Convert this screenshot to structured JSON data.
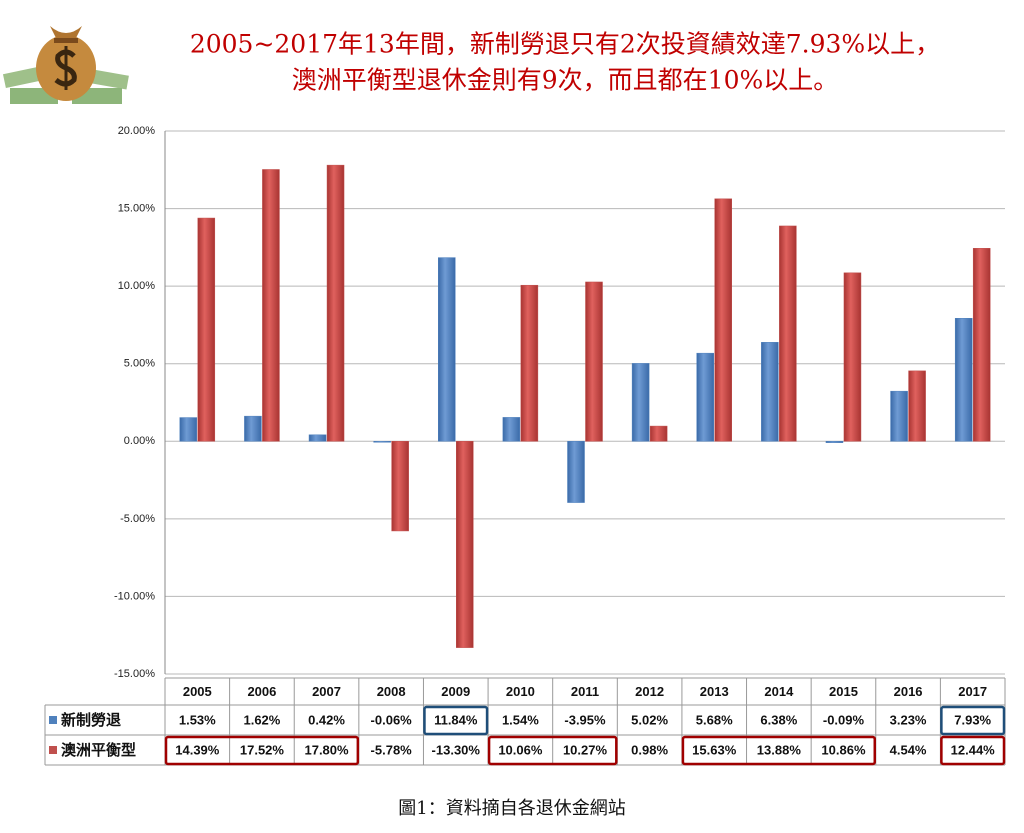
{
  "chart_data": {
    "type": "bar",
    "title": [
      "2005~2017年13年間，新制勞退只有2次投資績效達7.93%以上，",
      "澳洲平衡型退休金則有9次，而且都在10%以上。"
    ],
    "categories": [
      "2005",
      "2006",
      "2007",
      "2008",
      "2009",
      "2010",
      "2011",
      "2012",
      "2013",
      "2014",
      "2015",
      "2016",
      "2017"
    ],
    "series": [
      {
        "name": "新制勞退",
        "color": "#4f81bd",
        "values": [
          1.53,
          1.62,
          0.42,
          -0.06,
          11.84,
          1.54,
          -3.95,
          5.02,
          5.68,
          6.38,
          -0.09,
          3.23,
          7.93
        ],
        "value_labels": [
          "1.53%",
          "1.62%",
          "0.42%",
          "-0.06%",
          "11.84%",
          "1.54%",
          "-3.95%",
          "5.02%",
          "5.68%",
          "6.38%",
          "-0.09%",
          "3.23%",
          "7.93%"
        ]
      },
      {
        "name": "澳洲平衡型",
        "color": "#c0504d",
        "values": [
          14.39,
          17.52,
          17.8,
          -5.78,
          -13.3,
          10.06,
          10.27,
          0.98,
          15.63,
          13.88,
          10.86,
          4.54,
          12.44
        ],
        "value_labels": [
          "14.39%",
          "17.52%",
          "17.80%",
          "-5.78%",
          "-13.30%",
          "10.06%",
          "10.27%",
          "0.98%",
          "15.63%",
          "13.88%",
          "10.86%",
          "4.54%",
          "12.44%"
        ]
      }
    ],
    "ylim": [
      -15,
      20
    ],
    "yticks": [
      {
        "value": -15,
        "label": "-15.00%"
      },
      {
        "value": -10,
        "label": "-10.00%"
      },
      {
        "value": -5,
        "label": "-5.00%"
      },
      {
        "value": 0,
        "label": "0.00%"
      },
      {
        "value": 5,
        "label": "5.00%"
      },
      {
        "value": 10,
        "label": "10.00%"
      },
      {
        "value": 15,
        "label": "15.00%"
      },
      {
        "value": 20,
        "label": "20.00%"
      }
    ],
    "grid": true,
    "caption": "圖1：資料摘自各退休金網站"
  }
}
